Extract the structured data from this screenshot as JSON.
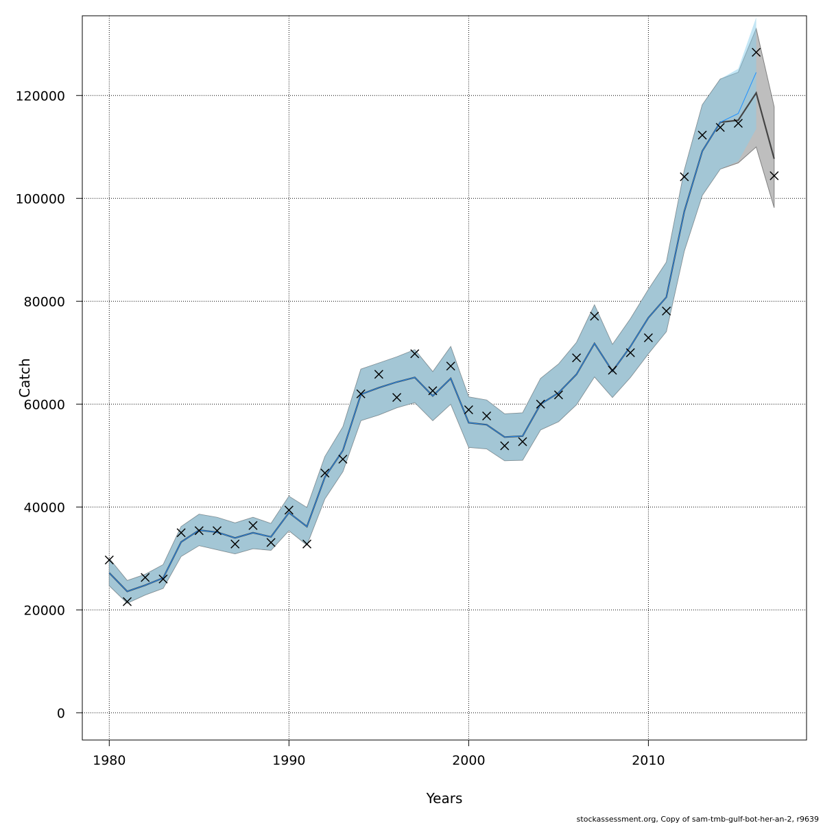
{
  "chart_data": {
    "type": "line",
    "title": "",
    "xlabel": "Years",
    "ylabel": "Catch",
    "xlim": [
      1978.5,
      2018.8
    ],
    "ylim": [
      -5300,
      135500
    ],
    "x_ticks": [
      1980,
      1990,
      2000,
      2010
    ],
    "y_ticks": [
      0,
      20000,
      40000,
      60000,
      80000,
      100000,
      120000
    ],
    "grid": true,
    "colors": {
      "band_gray": "#bebebe",
      "band_blue": "#87ceeb",
      "line_gray": "#444444",
      "line_blue": "#1e90ff",
      "grid": "#000000",
      "observed_marker": "#000000"
    },
    "series": [
      {
        "kind": "estimate_band",
        "x": [
          1980,
          1981,
          1982,
          1983,
          1984,
          1985,
          1986,
          1987,
          1988,
          1989,
          1990,
          1991,
          1992,
          1993,
          1994,
          1995,
          1996,
          1997,
          1998,
          1999,
          2000,
          2001,
          2002,
          2003,
          2004,
          2005,
          2006,
          2007,
          2008,
          2009,
          2010,
          2011,
          2012,
          2013,
          2014,
          2015,
          2016,
          2017
        ],
        "estimate": [
          27200,
          23600,
          24800,
          26200,
          33200,
          35500,
          35100,
          34000,
          35000,
          34200,
          38900,
          36200,
          45800,
          51000,
          61900,
          63200,
          64300,
          65200,
          61600,
          65000,
          56400,
          56000,
          53600,
          53800,
          60000,
          62200,
          65800,
          71800,
          66400,
          71200,
          76800,
          80800,
          97500,
          109200,
          114800,
          115200,
          120500,
          107700
        ],
        "lower": [
          24700,
          21300,
          22900,
          24200,
          30400,
          32500,
          31700,
          30900,
          31900,
          31600,
          35400,
          32600,
          41600,
          46900,
          56800,
          57900,
          59300,
          60300,
          56800,
          60000,
          51600,
          51300,
          49000,
          49100,
          55000,
          56600,
          59900,
          65300,
          61300,
          65200,
          69800,
          74100,
          89800,
          100600,
          105700,
          106900,
          110000,
          98200
        ],
        "upper": [
          30000,
          25700,
          26900,
          28800,
          36200,
          38600,
          38000,
          36900,
          38000,
          36800,
          42100,
          39900,
          49800,
          55600,
          66800,
          68000,
          69200,
          70600,
          66300,
          71200,
          61400,
          60800,
          58100,
          58300,
          65000,
          67800,
          72000,
          79300,
          71600,
          76600,
          82300,
          87600,
          105500,
          118200,
          123200,
          124500,
          133000,
          117800
        ]
      },
      {
        "kind": "fit_band",
        "x": [
          1980,
          1981,
          1982,
          1983,
          1984,
          1985,
          1986,
          1987,
          1988,
          1989,
          1990,
          1991,
          1992,
          1993,
          1994,
          1995,
          1996,
          1997,
          1998,
          1999,
          2000,
          2001,
          2002,
          2003,
          2004,
          2005,
          2006,
          2007,
          2008,
          2009,
          2010,
          2011,
          2012,
          2013,
          2014,
          2015,
          2016
        ],
        "estimate": [
          27200,
          23600,
          24800,
          26200,
          33200,
          35500,
          35100,
          34000,
          35000,
          34200,
          38900,
          36200,
          45800,
          51000,
          61900,
          63200,
          64300,
          65200,
          61600,
          65000,
          56400,
          56000,
          53600,
          53800,
          60000,
          62200,
          65800,
          71800,
          66400,
          71200,
          76800,
          80800,
          97500,
          109200,
          114800,
          116500,
          124500
        ],
        "lower": [
          24700,
          21300,
          22900,
          24200,
          30400,
          32500,
          31700,
          30900,
          31900,
          31600,
          35400,
          32600,
          41600,
          46900,
          56800,
          57900,
          59300,
          60300,
          56800,
          60000,
          51600,
          51300,
          49000,
          49100,
          55000,
          56600,
          59900,
          65300,
          61300,
          65200,
          69800,
          74100,
          89800,
          100600,
          105700,
          107200,
          113500
        ],
        "upper": [
          30000,
          25700,
          26900,
          28800,
          36200,
          38600,
          38000,
          36900,
          38000,
          36800,
          42100,
          39900,
          49800,
          55600,
          66800,
          68000,
          69200,
          70600,
          66300,
          71200,
          61400,
          60800,
          58100,
          58300,
          65000,
          67800,
          72000,
          79300,
          71600,
          76600,
          82300,
          87600,
          105500,
          118200,
          123200,
          125200,
          135200
        ]
      },
      {
        "kind": "observed",
        "x": [
          1980,
          1981,
          1982,
          1983,
          1984,
          1985,
          1986,
          1987,
          1988,
          1989,
          1990,
          1991,
          1992,
          1993,
          1994,
          1995,
          1996,
          1997,
          1998,
          1999,
          2000,
          2001,
          2002,
          2003,
          2004,
          2005,
          2006,
          2007,
          2008,
          2009,
          2010,
          2011,
          2012,
          2013,
          2014,
          2015,
          2016,
          2017
        ],
        "y": [
          29700,
          21600,
          26300,
          26000,
          35000,
          35400,
          35400,
          32800,
          36400,
          33100,
          39400,
          32800,
          46600,
          49300,
          62000,
          65800,
          61300,
          69800,
          62600,
          67400,
          58900,
          57700,
          51900,
          52700,
          60000,
          61800,
          69000,
          77100,
          66600,
          70000,
          72900,
          78100,
          104200,
          112300,
          113800,
          114600,
          128400,
          104400
        ]
      }
    ]
  },
  "footer": {
    "text": "stockassessment.org, Copy of sam-tmb-gulf-bot-her-an-2, r9639"
  }
}
